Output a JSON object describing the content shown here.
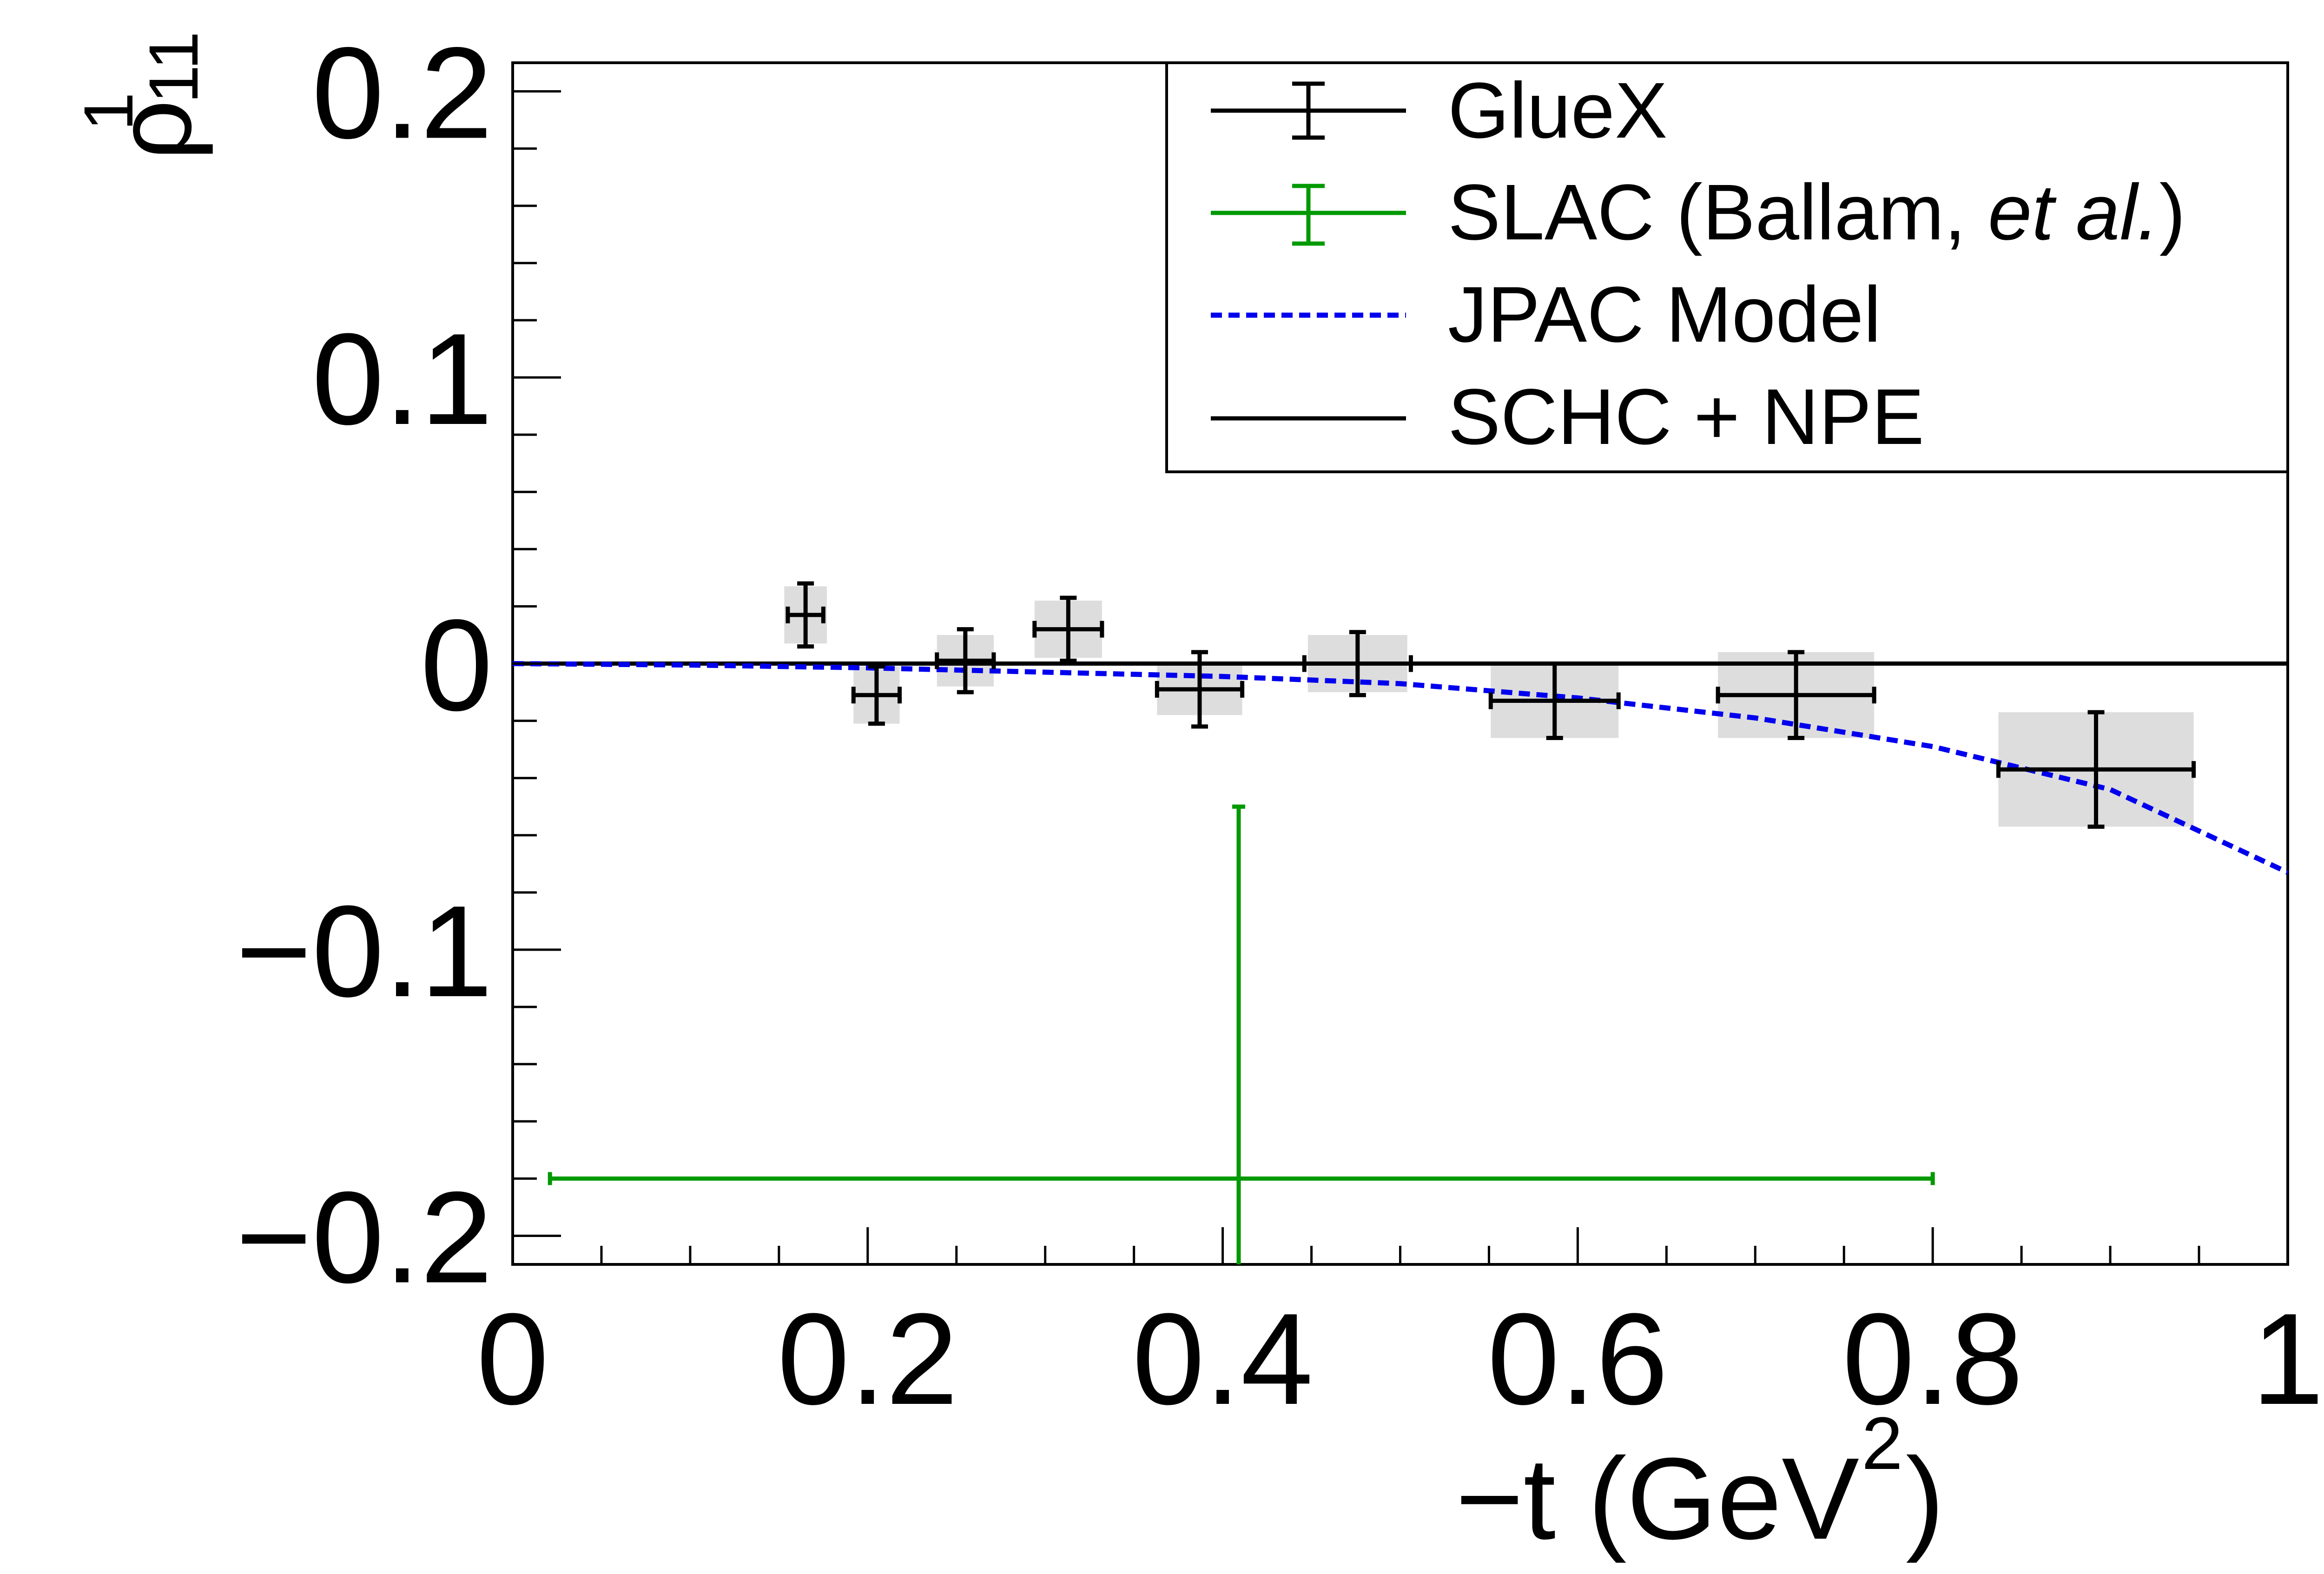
{
  "chart_data": {
    "type": "scatter",
    "xlabel": "−t (GeV",
    "xlabel_sup": "2",
    "xlabel_close": ")",
    "ylabel": "ρ",
    "ylabel_sup": "1",
    "ylabel_sub": "11",
    "xlim": [
      0,
      1
    ],
    "ylim": [
      -0.21,
      0.21
    ],
    "x_ticks": [
      {
        "value": 0,
        "label": "0"
      },
      {
        "value": 0.2,
        "label": "0.2"
      },
      {
        "value": 0.4,
        "label": "0.4"
      },
      {
        "value": 0.6,
        "label": "0.6"
      },
      {
        "value": 0.8,
        "label": "0.8"
      },
      {
        "value": 1,
        "label": "1"
      }
    ],
    "y_ticks": [
      {
        "value": -0.2,
        "label": "−0.2"
      },
      {
        "value": -0.1,
        "label": "−0.1"
      },
      {
        "value": 0,
        "label": "0"
      },
      {
        "value": 0.1,
        "label": "0.1"
      },
      {
        "value": 0.2,
        "label": "0.2"
      }
    ],
    "grid": false,
    "legend_position": "top-right",
    "legend": [
      {
        "key": "gluex",
        "label": "GlueX"
      },
      {
        "key": "slac",
        "label_main": "SLAC (Ballam, ",
        "label_italic": "et al.",
        "label_close": ")"
      },
      {
        "key": "jpac",
        "label": "JPAC Model"
      },
      {
        "key": "schc",
        "label": "SCHC + NPE"
      }
    ],
    "series": [
      {
        "name": "GlueX",
        "color": "#000000",
        "syst_color": "#dddddd",
        "points": [
          {
            "x": 0.165,
            "y": 0.017,
            "xerr": 0.01,
            "yerr": 0.011,
            "xsys": 0.012,
            "ysys": 0.01
          },
          {
            "x": 0.205,
            "y": -0.011,
            "xerr": 0.013,
            "yerr": 0.01,
            "xsys": 0.013,
            "ysys": 0.01
          },
          {
            "x": 0.255,
            "y": 0.001,
            "xerr": 0.016,
            "yerr": 0.011,
            "xsys": 0.016,
            "ysys": 0.009
          },
          {
            "x": 0.313,
            "y": 0.012,
            "xerr": 0.019,
            "yerr": 0.011,
            "xsys": 0.019,
            "ysys": 0.01
          },
          {
            "x": 0.387,
            "y": -0.009,
            "xerr": 0.024,
            "yerr": 0.013,
            "xsys": 0.024,
            "ysys": 0.009
          },
          {
            "x": 0.476,
            "y": 0.0,
            "xerr": 0.03,
            "yerr": 0.011,
            "xsys": 0.028,
            "ysys": 0.01
          },
          {
            "x": 0.587,
            "y": -0.013,
            "xerr": 0.036,
            "yerr": 0.013,
            "xsys": 0.036,
            "ysys": 0.013
          },
          {
            "x": 0.723,
            "y": -0.011,
            "xerr": 0.044,
            "yerr": 0.015,
            "xsys": 0.044,
            "ysys": 0.015
          },
          {
            "x": 0.892,
            "y": -0.037,
            "xerr": 0.055,
            "yerr": 0.02,
            "xsys": 0.055,
            "ysys": 0.02
          }
        ]
      },
      {
        "name": "SLAC (Ballam, et al.)",
        "color": "#009900",
        "points": [
          {
            "x": 0.409,
            "y": -0.18,
            "xlow": 0.021,
            "xhigh": 0.8,
            "ylow": -0.21,
            "yhigh": -0.05
          }
        ]
      },
      {
        "name": "JPAC Model",
        "color": "#0000ee",
        "x": [
          0.0,
          0.1,
          0.2,
          0.3,
          0.4,
          0.5,
          0.6,
          0.7,
          0.8,
          0.9,
          1.0
        ],
        "y": [
          0.0,
          -0.0005,
          -0.0015,
          -0.003,
          -0.0045,
          -0.007,
          -0.012,
          -0.019,
          -0.029,
          -0.044,
          -0.073
        ]
      },
      {
        "name": "SCHC + NPE",
        "color": "#000000",
        "x": [
          0.0,
          1.0
        ],
        "y": [
          0.0,
          0.0
        ]
      }
    ]
  }
}
